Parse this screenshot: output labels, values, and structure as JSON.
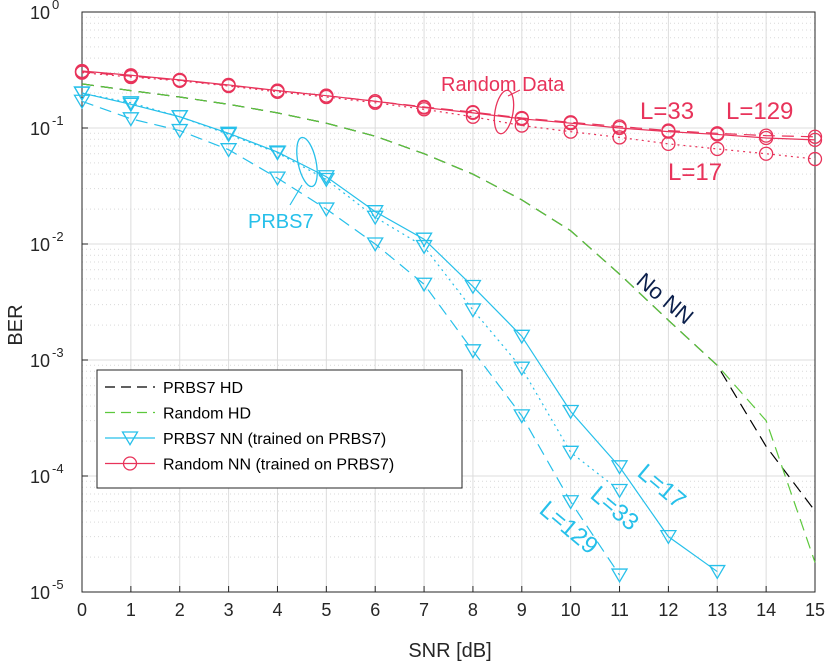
{
  "chart_data": {
    "type": "line",
    "xlabel": "SNR [dB]",
    "ylabel": "BER",
    "xlim": [
      0,
      15
    ],
    "ylim": [
      1e-05,
      1
    ],
    "y_scale": "log",
    "grid": true,
    "minor_grid": true,
    "x_ticks": [
      "0",
      "1",
      "2",
      "3",
      "4",
      "5",
      "6",
      "7",
      "8",
      "9",
      "10",
      "11",
      "12",
      "13",
      "14",
      "15"
    ],
    "y_ticks": [
      {
        "value": 1e-05,
        "base": "10",
        "exp": "-5"
      },
      {
        "value": 0.0001,
        "base": "10",
        "exp": "-4"
      },
      {
        "value": 0.001,
        "base": "10",
        "exp": "-3"
      },
      {
        "value": 0.01,
        "base": "10",
        "exp": "-2"
      },
      {
        "value": 0.1,
        "base": "10",
        "exp": "-1"
      },
      {
        "value": 1,
        "base": "10",
        "exp": "0"
      }
    ],
    "legend_position": "bottom-left",
    "legend": [
      {
        "label": "PRBS7 HD",
        "color": "#000000",
        "dash": "dashed",
        "marker": "none"
      },
      {
        "label": "Random HD",
        "color": "#5cc83c",
        "dash": "dashed",
        "marker": "none"
      },
      {
        "label": "PRBS7 NN (trained on PRBS7)",
        "color": "#27c0ea",
        "dash": "solid",
        "marker": "triangle-down"
      },
      {
        "label": "Random NN (trained on PRBS7)",
        "color": "#e8335a",
        "dash": "solid",
        "marker": "circle"
      }
    ],
    "series": [
      {
        "group": "PRBS7 HD",
        "color": "#000000",
        "dash": "dashed",
        "marker": "none",
        "x": [
          0,
          1,
          2,
          3,
          4,
          5,
          6,
          7,
          8,
          9,
          10,
          11,
          12,
          13,
          14,
          15
        ],
        "y": [
          0.24,
          0.21,
          0.185,
          0.16,
          0.135,
          0.11,
          0.085,
          0.06,
          0.04,
          0.024,
          0.013,
          0.0055,
          0.0022,
          0.0009,
          0.00018,
          5e-05
        ]
      },
      {
        "group": "Random HD",
        "color": "#5cc83c",
        "dash": "dashed",
        "marker": "none",
        "x": [
          0,
          1,
          2,
          3,
          4,
          5,
          6,
          7,
          8,
          9,
          10,
          11,
          12,
          13,
          14,
          15
        ],
        "y": [
          0.24,
          0.21,
          0.185,
          0.16,
          0.135,
          0.11,
          0.085,
          0.06,
          0.04,
          0.024,
          0.013,
          0.0055,
          0.0022,
          0.0009,
          0.0003,
          1.8e-05
        ]
      },
      {
        "group": "PRBS7 NN",
        "label": "L=17",
        "color": "#27c0ea",
        "dash": "solid",
        "marker": "triangle-down",
        "x": [
          0,
          1,
          2,
          3,
          4,
          5,
          6,
          7,
          8,
          9,
          10,
          11,
          12,
          13
        ],
        "y": [
          0.2,
          0.16,
          0.125,
          0.09,
          0.062,
          0.038,
          0.019,
          0.011,
          0.0043,
          0.0016,
          0.00036,
          0.00012,
          3e-05,
          1.5e-05
        ]
      },
      {
        "group": "PRBS7 NN",
        "label": "L=33",
        "color": "#27c0ea",
        "dash": "dotted",
        "marker": "triangle-down",
        "x": [
          0,
          1,
          2,
          3,
          4,
          5,
          6,
          7,
          8,
          9,
          10,
          11
        ],
        "y": [
          0.2,
          0.165,
          0.125,
          0.088,
          0.061,
          0.036,
          0.017,
          0.0095,
          0.0027,
          0.00085,
          0.00016,
          7.5e-05
        ]
      },
      {
        "group": "PRBS7 NN",
        "label": "L=129",
        "color": "#27c0ea",
        "dash": "dashed",
        "marker": "triangle-down",
        "x": [
          0,
          1,
          2,
          3,
          4,
          5,
          6,
          7,
          8,
          9,
          10,
          11
        ],
        "y": [
          0.17,
          0.12,
          0.095,
          0.065,
          0.037,
          0.02,
          0.01,
          0.0045,
          0.0012,
          0.00033,
          6e-05,
          1.4e-05
        ]
      },
      {
        "group": "Random NN",
        "label": "L=17",
        "color": "#e8335a",
        "dash": "dotted",
        "marker": "circle",
        "x": [
          0,
          1,
          2,
          3,
          4,
          5,
          6,
          7,
          8,
          9,
          10,
          11,
          12,
          13,
          14,
          15
        ],
        "y": [
          0.3,
          0.275,
          0.255,
          0.23,
          0.205,
          0.185,
          0.165,
          0.145,
          0.125,
          0.105,
          0.093,
          0.083,
          0.073,
          0.066,
          0.06,
          0.054
        ]
      },
      {
        "group": "Random NN",
        "label": "L=33",
        "color": "#e8335a",
        "dash": "solid",
        "marker": "circle",
        "x": [
          0,
          1,
          2,
          3,
          4,
          5,
          6,
          7,
          8,
          9,
          10,
          11,
          12,
          13,
          14,
          15
        ],
        "y": [
          0.31,
          0.285,
          0.26,
          0.235,
          0.21,
          0.19,
          0.17,
          0.15,
          0.135,
          0.12,
          0.11,
          0.1,
          0.093,
          0.088,
          0.082,
          0.079
        ]
      },
      {
        "group": "Random NN",
        "label": "L=129",
        "color": "#e8335a",
        "dash": "dashed",
        "marker": "circle",
        "x": [
          0,
          1,
          2,
          3,
          4,
          5,
          6,
          7,
          8,
          9,
          10,
          11,
          12,
          13,
          14,
          15
        ],
        "y": [
          0.305,
          0.28,
          0.258,
          0.233,
          0.21,
          0.19,
          0.17,
          0.152,
          0.137,
          0.122,
          0.112,
          0.103,
          0.095,
          0.09,
          0.086,
          0.084
        ]
      }
    ],
    "annotations": {
      "random_data": "Random Data",
      "prbs7": "PRBS7",
      "no_nn": "No NN",
      "red_l33": "L=33",
      "red_l129": "L=129",
      "red_l17": "L=17",
      "cyan_l17": "L=17",
      "cyan_l33": "L=33",
      "cyan_l129": "L=129"
    },
    "colors": {
      "cyan": "#27c0ea",
      "red": "#e8335a",
      "green": "#5cc83c",
      "navy": "#0b1f4b"
    }
  }
}
